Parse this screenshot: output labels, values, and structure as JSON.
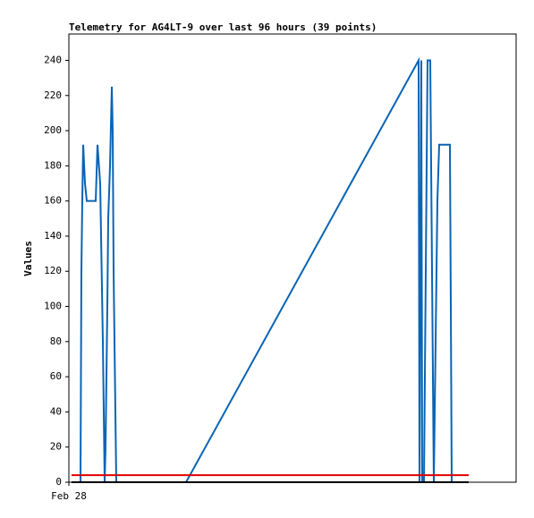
{
  "chart_data": {
    "type": "line",
    "title": "Telemetry for AG4LT-9 over last 96 hours (39 points)",
    "y_label": "Values",
    "xlim": [
      0,
      100
    ],
    "xticks": [
      {
        "value": 0,
        "label": "Feb 28"
      }
    ],
    "ylim": [
      0,
      255
    ],
    "yticks": [
      0,
      20,
      40,
      60,
      80,
      100,
      120,
      140,
      160,
      180,
      200,
      220,
      240
    ],
    "series": [
      {
        "color": "#0a64b4",
        "x": [
          2.6,
          2.8,
          3.0,
          3.2,
          3.6,
          4.0,
          4.6,
          5.4,
          6.0,
          6.4,
          7.0,
          7.6,
          8.0,
          8.2,
          8.6,
          8.8,
          9.2,
          9.6,
          9.8,
          10.0,
          10.6,
          26.2,
          78.2,
          78.4,
          78.8,
          79.0,
          79.4,
          79.8,
          80.2,
          80.8,
          81.2,
          81.6,
          82.0,
          82.4,
          82.8,
          83.6,
          85.2,
          85.4,
          85.6
        ],
        "values": [
          0,
          120,
          160,
          192,
          170,
          160,
          160,
          160,
          160,
          192,
          170,
          80,
          0,
          20,
          100,
          150,
          180,
          225,
          200,
          120,
          0,
          0,
          240,
          0,
          240,
          0,
          0,
          120,
          240,
          240,
          120,
          0,
          80,
          160,
          192,
          192,
          192,
          100,
          0
        ]
      },
      {
        "color": "#000000",
        "x": [
          0.6,
          89.4
        ],
        "values": [
          0,
          0
        ]
      },
      {
        "color": "#e00000",
        "x": [
          0.6,
          89.4
        ],
        "values": [
          4,
          4
        ]
      }
    ]
  }
}
